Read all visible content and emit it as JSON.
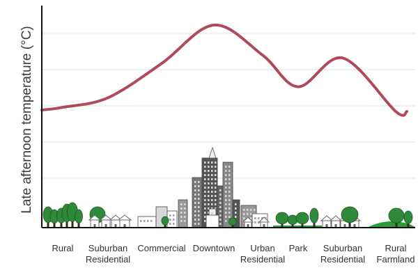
{
  "chart_data": {
    "type": "line",
    "title": "",
    "ylabel": "Late afternoon temperature (°C)",
    "xlabel": "",
    "grid": true,
    "y_tick_labels_shown": false,
    "categories": [
      {
        "lines": [
          "Rural"
        ]
      },
      {
        "lines": [
          "Suburban",
          "Residential"
        ]
      },
      {
        "lines": [
          "Commercial"
        ]
      },
      {
        "lines": [
          "Downtown"
        ]
      },
      {
        "lines": [
          "Urban",
          "Residential"
        ]
      },
      {
        "lines": [
          "Park"
        ]
      },
      {
        "lines": [
          "Suburban",
          "Residential"
        ]
      },
      {
        "lines": [
          "Rural",
          "Farmland"
        ]
      }
    ],
    "series": [
      {
        "values_relative": [
          0.4,
          0.47,
          0.72,
          1.0,
          0.78,
          0.55,
          0.76,
          0.37
        ]
      }
    ],
    "colors": {
      "line": "#b04a5a",
      "axis": "#111111",
      "grid": "#dddddd",
      "tree": "#2e8a3a",
      "ground_green": "#2a9a3a",
      "building_dark": "#555555",
      "building_mid": "#8a8a8a"
    }
  }
}
